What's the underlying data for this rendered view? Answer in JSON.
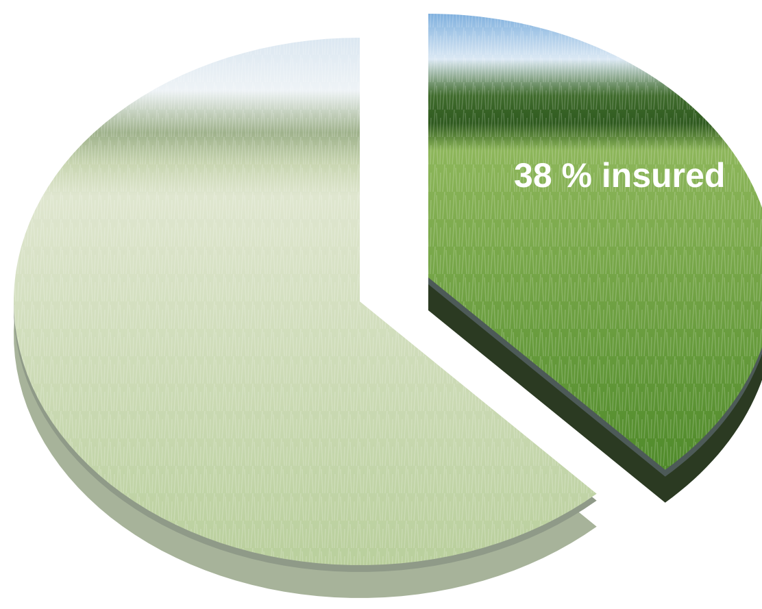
{
  "chart_data": {
    "type": "pie",
    "values": [
      38,
      62
    ],
    "value_labels": [
      "38 % insured",
      null
    ],
    "colors": [
      "#4f8a2a",
      "#b9cf9c"
    ],
    "exploded": [
      true,
      false
    ]
  }
}
